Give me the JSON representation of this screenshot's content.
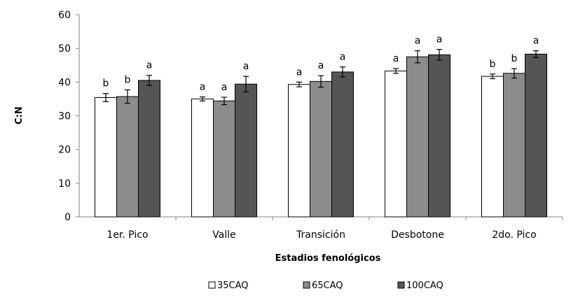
{
  "chart_data": {
    "type": "bar",
    "xlabel": "Estadios fenológicos",
    "ylabel": "C:N",
    "ylim": [
      0,
      60
    ],
    "yticks": [
      0,
      10,
      20,
      30,
      40,
      50,
      60
    ],
    "grid": false,
    "legend_position": "bottom",
    "categories": [
      "1er. Pico",
      "Valle",
      "Transición",
      "Desbotone",
      "2do. Pico"
    ],
    "series": [
      {
        "name": "35CAQ",
        "color": "#ffffff",
        "values": [
          35.4,
          35.0,
          39.3,
          43.3,
          41.7
        ],
        "errors": [
          1.2,
          0.6,
          0.7,
          0.7,
          0.7
        ],
        "letters": [
          "b",
          "a",
          "a",
          "a",
          "b"
        ]
      },
      {
        "name": "65CAQ",
        "color": "#8c8c8c",
        "values": [
          35.7,
          34.4,
          40.2,
          47.5,
          42.6
        ],
        "errors": [
          2.0,
          1.1,
          1.7,
          1.8,
          1.4
        ],
        "letters": [
          "b",
          "a",
          "a",
          "a",
          "b"
        ]
      },
      {
        "name": "100CAQ",
        "color": "#555555",
        "values": [
          40.5,
          39.4,
          43.0,
          48.1,
          48.3
        ],
        "errors": [
          1.5,
          2.3,
          1.5,
          1.6,
          1.0
        ],
        "letters": [
          "a",
          "a",
          "a",
          "a",
          "a"
        ]
      }
    ]
  }
}
